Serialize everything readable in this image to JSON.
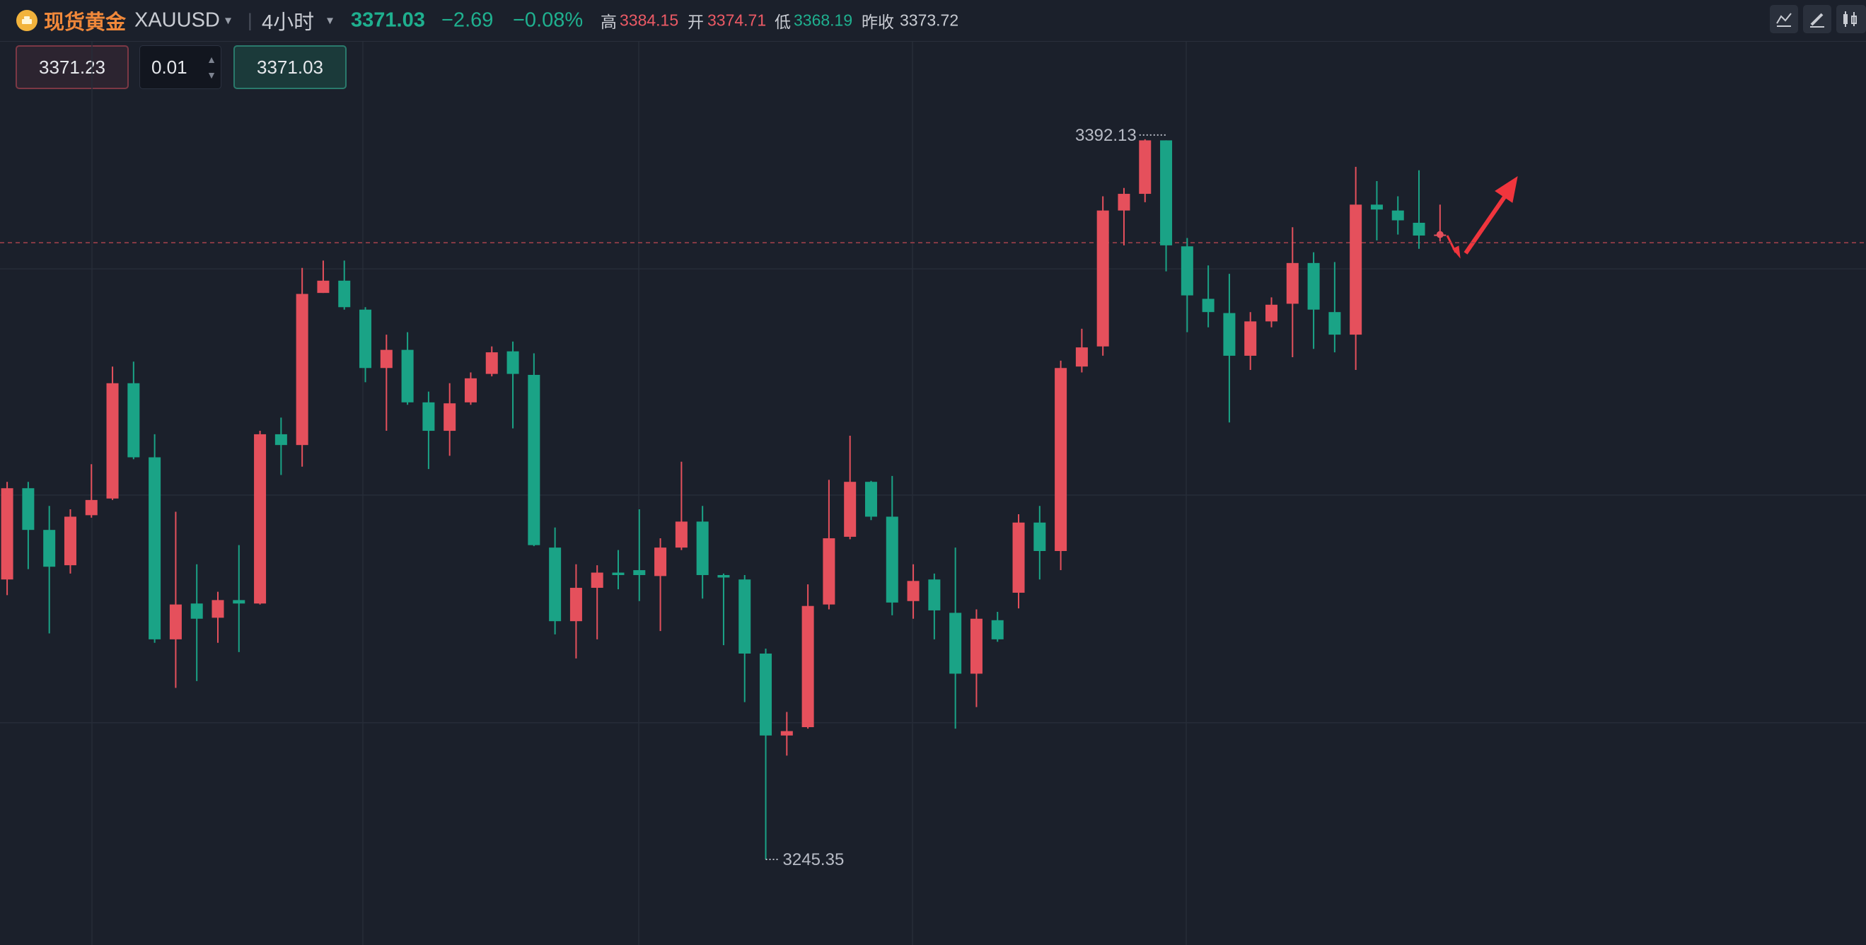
{
  "header": {
    "name": "现货黄金",
    "symbol": "XAUUSD",
    "interval": "4小时",
    "price": "3371.03",
    "change": "−2.69",
    "change_pct": "−0.08%",
    "high_label": "高",
    "high": "3384.15",
    "open_label": "开",
    "open": "3374.71",
    "low_label": "低",
    "low": "3368.19",
    "prev_close_label": "昨收",
    "prev_close": "3373.72"
  },
  "order": {
    "sell": "3371.23",
    "qty": "0.01",
    "buy": "3371.03"
  },
  "chart_data": {
    "type": "candlestick",
    "open": [
      3302.4,
      3321.0,
      3312.5,
      3305.3,
      3315.5,
      3318.9,
      3342.4,
      3327.3,
      3290.2,
      3297.5,
      3294.6,
      3298.2,
      3297.5,
      3332.0,
      3329.8,
      3360.8,
      3363.3,
      3357.4,
      3345.5,
      3349.2,
      3338.5,
      3332.7,
      3338.5,
      3344.3,
      3348.9,
      3344.1,
      3308.9,
      3293.9,
      3300.7,
      3303.8,
      3304.3,
      3303.1,
      3308.9,
      3314.2,
      3303.3,
      3302.4,
      3287.3,
      3270.6,
      3272.3,
      3297.3,
      3311.1,
      3322.3,
      3315.2,
      3298.0,
      3302.4,
      3295.6,
      3283.2,
      3294.1,
      3299.7,
      3314.0,
      3308.2,
      3345.8,
      3349.9,
      3377.6,
      3381.0,
      3391.9,
      3370.3,
      3359.6,
      3356.7,
      3348.0,
      3355.0,
      3358.6,
      3366.9,
      3356.9,
      3352.3,
      3378.8,
      3377.6,
      3375.1,
      3372.5
    ],
    "high": [
      3322.3,
      3322.3,
      3317.4,
      3316.7,
      3325.9,
      3345.8,
      3346.8,
      3332.0,
      3316.2,
      3305.5,
      3299.9,
      3309.4,
      3332.7,
      3335.4,
      3365.9,
      3367.4,
      3367.4,
      3357.9,
      3352.3,
      3352.8,
      3340.7,
      3342.4,
      3344.6,
      3349.9,
      3350.9,
      3348.5,
      3313.0,
      3305.5,
      3305.3,
      3308.4,
      3316.7,
      3310.8,
      3326.4,
      3317.4,
      3303.6,
      3303.3,
      3288.3,
      3275.4,
      3301.4,
      3322.7,
      3331.7,
      3322.5,
      3323.5,
      3305.5,
      3303.6,
      3308.9,
      3296.3,
      3295.8,
      3315.7,
      3317.4,
      3347.0,
      3353.5,
      3380.5,
      3382.2,
      3392.13,
      3391.9,
      3372.0,
      3366.4,
      3364.7,
      3356.9,
      3359.9,
      3374.2,
      3369.1,
      3367.1,
      3386.5,
      3383.6,
      3380.5,
      3385.8,
      3378.8
    ],
    "low": [
      3299.2,
      3304.5,
      3291.4,
      3303.6,
      3315.0,
      3318.6,
      3326.9,
      3289.5,
      3280.3,
      3281.7,
      3289.5,
      3287.6,
      3297.3,
      3323.7,
      3325.4,
      3360.8,
      3357.4,
      3342.6,
      3332.7,
      3338.0,
      3324.9,
      3327.6,
      3338.0,
      3343.8,
      3333.2,
      3309.2,
      3291.2,
      3286.3,
      3290.2,
      3300.4,
      3298.0,
      3291.9,
      3308.4,
      3298.5,
      3289.0,
      3277.4,
      3245.35,
      3266.5,
      3272.0,
      3296.3,
      3310.6,
      3314.5,
      3295.1,
      3294.4,
      3290.2,
      3272.0,
      3276.4,
      3289.7,
      3296.5,
      3302.4,
      3304.3,
      3344.6,
      3348.0,
      3370.5,
      3379.3,
      3365.2,
      3352.8,
      3353.8,
      3334.4,
      3345.1,
      3353.8,
      3347.7,
      3349.4,
      3348.7,
      3345.1,
      3371.5,
      3372.7,
      3369.8,
      3371.3
    ],
    "close": [
      3321.0,
      3312.5,
      3305.0,
      3315.2,
      3318.6,
      3342.4,
      3327.3,
      3290.2,
      3297.3,
      3294.4,
      3298.2,
      3297.5,
      3332.0,
      3329.8,
      3360.6,
      3363.3,
      3357.9,
      3345.5,
      3349.2,
      3338.5,
      3332.7,
      3338.3,
      3343.4,
      3348.7,
      3344.3,
      3309.4,
      3293.9,
      3300.7,
      3303.8,
      3303.3,
      3303.3,
      3308.9,
      3314.2,
      3303.3,
      3302.8,
      3287.3,
      3270.6,
      3271.5,
      3297.0,
      3310.8,
      3322.3,
      3315.2,
      3297.7,
      3302.1,
      3296.1,
      3283.2,
      3294.4,
      3290.2,
      3314.0,
      3308.2,
      3345.5,
      3349.7,
      3377.6,
      3381.0,
      3391.9,
      3370.5,
      3360.3,
      3356.9,
      3348.0,
      3355.0,
      3358.4,
      3366.9,
      3357.4,
      3352.3,
      3378.8,
      3377.8,
      3375.6,
      3372.5,
      3372.7
    ],
    "up_color": "#e5505c",
    "down_color": "#1aa386",
    "ylim": [
      3227.9,
      3412.0
    ],
    "grid_y": [
      3365.7,
      3319.6,
      3273.2
    ],
    "grid": true,
    "price_line": 3371.03,
    "annotations": {
      "high": "3392.13",
      "low": "3245.35"
    }
  }
}
